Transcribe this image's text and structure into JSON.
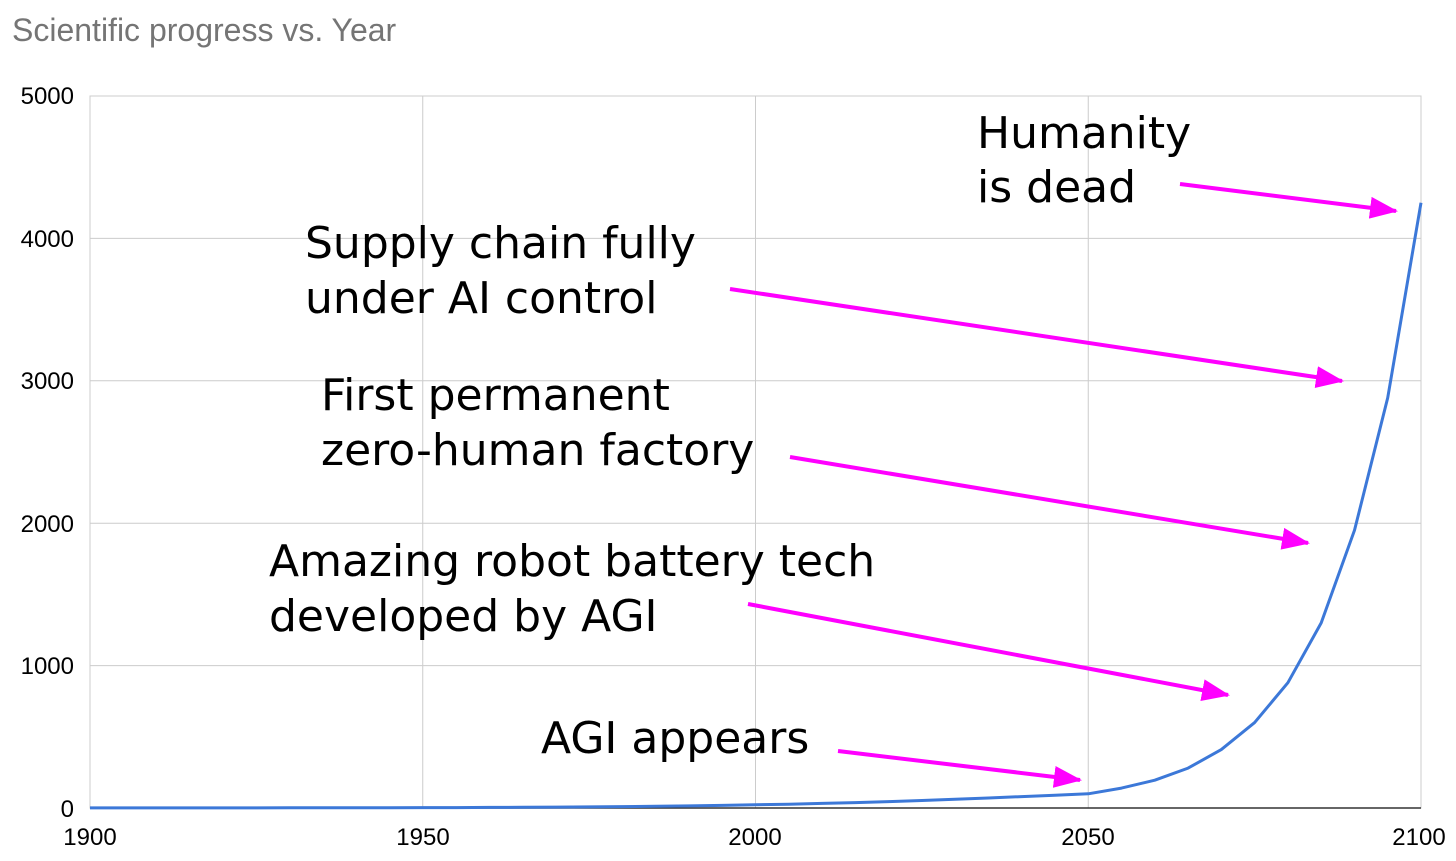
{
  "chart_data": {
    "type": "line",
    "title": "Scientific progress vs. Year",
    "xlabel": "",
    "ylabel": "",
    "xlim": [
      1900,
      2100
    ],
    "ylim": [
      0,
      5000
    ],
    "x_ticks": [
      "1900",
      "1950",
      "2000",
      "2050",
      "2100"
    ],
    "y_ticks": [
      "0",
      "1000",
      "2000",
      "3000",
      "4000",
      "5000"
    ],
    "grid": true,
    "legend": "none",
    "line_color": "#3c78d8",
    "series": [
      {
        "x": [
          1900,
          1905,
          1910,
          1915,
          1920,
          1925,
          1930,
          1935,
          1940,
          1945,
          1950,
          1955,
          1960,
          1965,
          1970,
          1975,
          1980,
          1985,
          1990,
          1995,
          2000,
          2005,
          2010,
          2015,
          2020,
          2025,
          2030,
          2035,
          2040,
          2045,
          2050,
          2055,
          2060,
          2065,
          2070,
          2075,
          2080,
          2085,
          2090,
          2095,
          2100
        ],
        "values": [
          1,
          1,
          1,
          1,
          1,
          1,
          2,
          2,
          2,
          2,
          3,
          3,
          4,
          5,
          6,
          8,
          10,
          12,
          15,
          18,
          23,
          27,
          32,
          38,
          45,
          53,
          61,
          70,
          80,
          90,
          100,
          140,
          195,
          280,
          410,
          600,
          880,
          1300,
          1950,
          2880,
          4250
        ]
      }
    ],
    "annotations": [
      {
        "lines": [
          "Humanity",
          "is dead"
        ],
        "arrow_color": "#ff00ff"
      },
      {
        "lines": [
          "Supply chain fully",
          "under AI control"
        ],
        "arrow_color": "#ff00ff"
      },
      {
        "lines": [
          "First permanent",
          "zero-human factory"
        ],
        "arrow_color": "#ff00ff"
      },
      {
        "lines": [
          "Amazing robot battery tech",
          "developed by AGI"
        ],
        "arrow_color": "#ff00ff"
      },
      {
        "lines": [
          "AGI appears"
        ],
        "arrow_color": "#ff00ff"
      }
    ]
  }
}
